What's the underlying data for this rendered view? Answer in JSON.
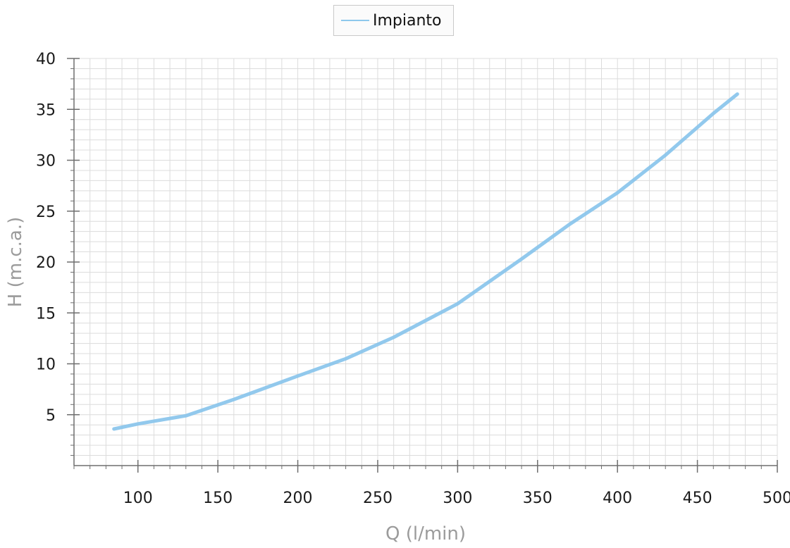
{
  "colors": {
    "series_line": "#86c3eb",
    "grid": "#dcdcdc",
    "axis": "#6e6e6e",
    "tick_label": "#1a1a1a",
    "axis_title": "#9b9b9b"
  },
  "chart_data": {
    "type": "line",
    "xlabel": "Q (l/min)",
    "ylabel": "H (m.c.a.)",
    "xlim": [
      60,
      500
    ],
    "ylim": [
      0,
      40
    ],
    "x_ticks": [
      100,
      150,
      200,
      250,
      300,
      350,
      400,
      450,
      500
    ],
    "y_ticks": [
      5,
      10,
      15,
      20,
      25,
      30,
      35,
      40
    ],
    "grid": true,
    "legend": "top-center",
    "series": [
      {
        "name": "Impianto",
        "x": [
          85,
          100,
          130,
          160,
          200,
          230,
          260,
          300,
          340,
          370,
          400,
          430,
          460,
          475
        ],
        "y": [
          3.6,
          4.1,
          4.9,
          6.5,
          8.8,
          10.5,
          12.6,
          15.9,
          20.3,
          23.7,
          26.8,
          30.5,
          34.6,
          36.5
        ]
      }
    ]
  }
}
